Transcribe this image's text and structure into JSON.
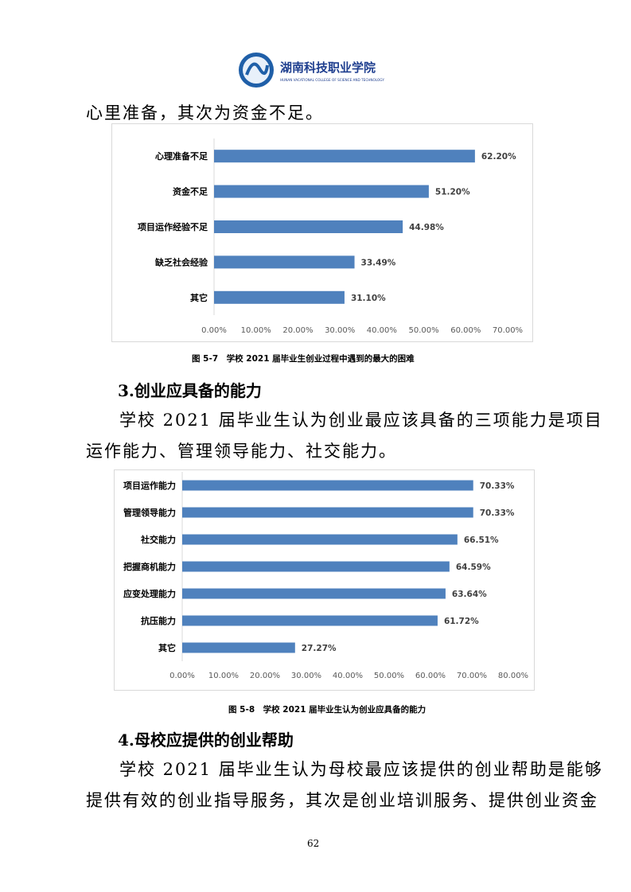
{
  "header": {
    "logo_cn": "湖南科技职业学院",
    "logo_en": "HUNAN VACATIONAL COLLEGE OF SCIENCE AND TECHNOLOGY"
  },
  "para0": "心里准备，其次为资金不足。",
  "fig1_caption": "图 5-7　学校 2021 届毕业生创业过程中遇到的最大的困难",
  "heading3": "3.创业应具备的能力",
  "para3_line1": "学校 2021 届毕业生认为创业最应该具备的三项能力是项目",
  "para3_line2": "运作能力、管理领导能力、社交能力。",
  "fig2_caption": "图 5-8　学校 2021 届毕业生认为创业应具备的能力",
  "heading4": "4.母校应提供的创业帮助",
  "para4_line1": "学校 2021 届毕业生认为母校最应该提供的创业帮助是能够",
  "para4_line2": "提供有效的创业指导服务，其次是创业培训服务、提供创业资金",
  "page_number": "62",
  "colors": {
    "bar": "#4f81bd",
    "axis_text": "#595959"
  },
  "chart_data": [
    {
      "type": "bar",
      "orientation": "horizontal",
      "categories": [
        "心理准备不足",
        "资金不足",
        "项目运作经验不足",
        "缺乏社会经验",
        "其它"
      ],
      "values": [
        62.2,
        51.2,
        44.98,
        33.49,
        31.1
      ],
      "data_labels": [
        "62.20%",
        "51.20%",
        "44.98%",
        "33.49%",
        "31.10%"
      ],
      "xlim": [
        0,
        70
      ],
      "xticks": [
        "0.00%",
        "10.00%",
        "20.00%",
        "30.00%",
        "40.00%",
        "50.00%",
        "60.00%",
        "70.00%"
      ],
      "grid": false
    },
    {
      "type": "bar",
      "orientation": "horizontal",
      "categories": [
        "项目运作能力",
        "管理领导能力",
        "社交能力",
        "把握商机能力",
        "应变处理能力",
        "抗压能力",
        "其它"
      ],
      "values": [
        70.33,
        70.33,
        66.51,
        64.59,
        63.64,
        61.72,
        27.27
      ],
      "data_labels": [
        "70.33%",
        "70.33%",
        "66.51%",
        "64.59%",
        "63.64%",
        "61.72%",
        "27.27%"
      ],
      "xlim": [
        0,
        80
      ],
      "xticks": [
        "0.00%",
        "10.00%",
        "20.00%",
        "30.00%",
        "40.00%",
        "50.00%",
        "60.00%",
        "70.00%",
        "80.00%"
      ],
      "grid": false
    }
  ]
}
